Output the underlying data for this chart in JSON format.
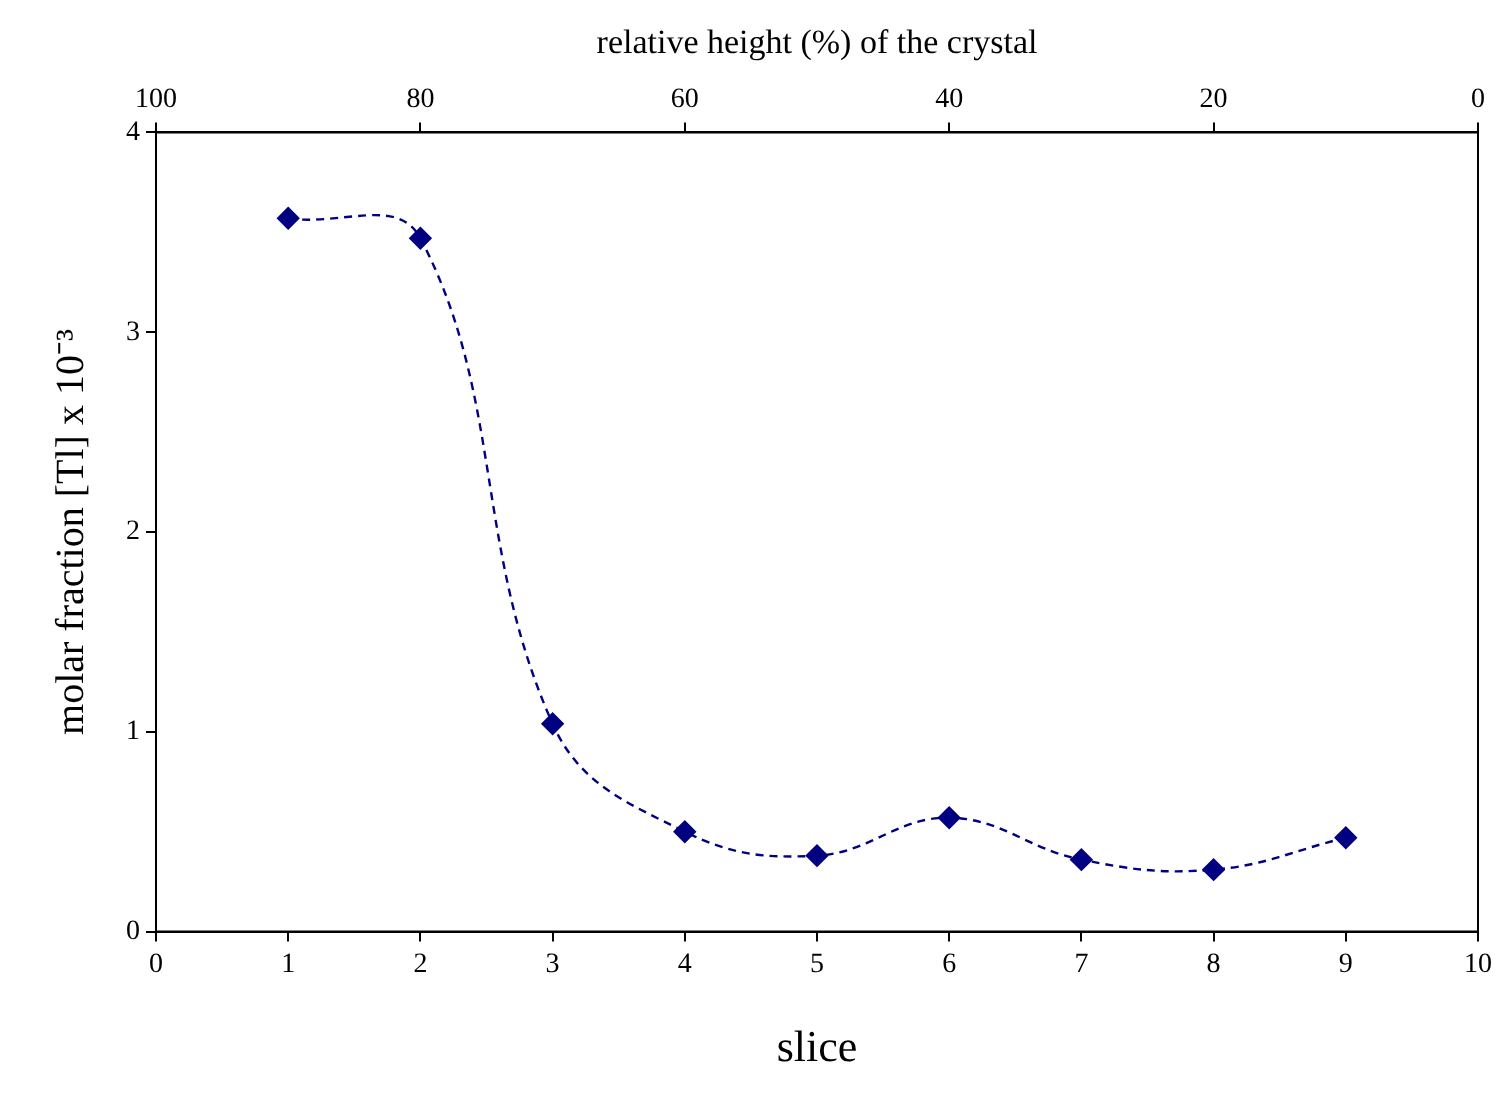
{
  "chart_data": {
    "type": "line",
    "xlabel": "slice",
    "ylabel": "molar fraction [Tl] x 10⁻³",
    "x2label": "relative height (%) of the crystal",
    "x": [
      1,
      2,
      3,
      4,
      5,
      6,
      7,
      8,
      9
    ],
    "series": [
      {
        "color": "#000080",
        "values": [
          3.57,
          3.47,
          1.04,
          0.5,
          0.38,
          0.57,
          0.36,
          0.31,
          0.47
        ]
      }
    ],
    "xlim": [
      0,
      10
    ],
    "xticks": [
      0,
      1,
      2,
      3,
      4,
      5,
      6,
      7,
      8,
      9,
      10
    ],
    "x2lim": [
      100,
      0
    ],
    "x2ticks": [
      100,
      80,
      60,
      40,
      20,
      0
    ],
    "ylim": [
      0,
      4
    ],
    "yticks": [
      0,
      1,
      2,
      3,
      4
    ],
    "grid": false,
    "legend": false,
    "marker": "diamond",
    "line_style": "dashed"
  }
}
